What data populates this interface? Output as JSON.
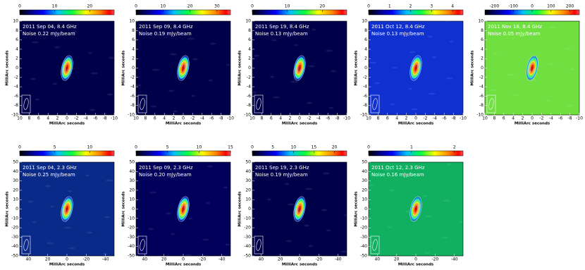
{
  "chart_data": [
    {
      "type": "image",
      "label": "2011 Sep 04, 8.4 GHz",
      "noise": "Noise 0.22 mJy/beam",
      "xlabel": "MilliArc seconds",
      "ylabel": "MilliArc seconds",
      "xlim": [
        10,
        -10
      ],
      "ylim": [
        -10,
        10
      ],
      "xticks": [
        10,
        8,
        6,
        4,
        2,
        0,
        -2,
        -4,
        -6,
        -8,
        -10
      ],
      "yticks": [
        -10,
        -8,
        -6,
        -4,
        -2,
        0,
        2,
        4,
        6,
        8,
        10
      ],
      "clim": [
        0,
        27
      ],
      "cticks": [
        0,
        10,
        20
      ],
      "background": "#00004a"
    },
    {
      "type": "image",
      "label": "2011 Sep 09, 8.4 GHz",
      "noise": "Noise 0.19 mJy/beam",
      "xlabel": "MilliArc seconds",
      "ylabel": "MilliArc seconds",
      "xlim": [
        10,
        -10
      ],
      "ylim": [
        -10,
        10
      ],
      "xticks": [
        10,
        8,
        6,
        4,
        2,
        0,
        -2,
        -4,
        -6,
        -8,
        -10
      ],
      "yticks": [
        -10,
        -8,
        -6,
        -4,
        -2,
        0,
        2,
        4,
        6,
        8,
        10
      ],
      "clim": [
        0,
        35
      ],
      "cticks": [
        0,
        10,
        20,
        30
      ],
      "background": "#00004a"
    },
    {
      "type": "image",
      "label": "2011 Sep 19, 8.4 GHz",
      "noise": "Noise 0.13 mJy/beam",
      "xlabel": "MilliArc seconds",
      "ylabel": "MilliArc seconds",
      "xlim": [
        10,
        -10
      ],
      "ylim": [
        -10,
        10
      ],
      "xticks": [
        10,
        8,
        6,
        4,
        2,
        0,
        -2,
        -4,
        -6,
        -8,
        -10
      ],
      "yticks": [
        -10,
        -8,
        -6,
        -4,
        -2,
        0,
        2,
        4,
        6,
        8,
        10
      ],
      "clim": [
        0,
        27
      ],
      "cticks": [
        0,
        10,
        20
      ],
      "background": "#00004a"
    },
    {
      "type": "image",
      "label": "2011 Oct 12, 8.4 GHz",
      "noise": "Noise 0.13 mJy/beam",
      "xlabel": "MilliArc seconds",
      "ylabel": "MilliArc seconds",
      "xlim": [
        10,
        -10
      ],
      "ylim": [
        -10,
        10
      ],
      "xticks": [
        10,
        8,
        6,
        4,
        2,
        0,
        -2,
        -4,
        -6,
        -8,
        -10
      ],
      "yticks": [
        -10,
        -8,
        -6,
        -4,
        -2,
        0,
        2,
        4,
        6,
        8,
        10
      ],
      "clim": [
        0,
        4.5
      ],
      "cticks": [
        0,
        1,
        2,
        3,
        4
      ],
      "background": "#1030d0"
    },
    {
      "type": "image",
      "label": "2011 Nov 18, 8.4 GHz",
      "noise": "Noise 0.05 mJy/beam",
      "xlabel": "MilliArc seconds",
      "ylabel": "MilliArc seconds",
      "xlim": [
        10,
        -10
      ],
      "ylim": [
        -10,
        10
      ],
      "xticks": [
        10,
        8,
        6,
        4,
        2,
        0,
        -2,
        -4,
        -6,
        -8,
        -10
      ],
      "yticks": [
        -10,
        -8,
        -6,
        -4,
        -2,
        0,
        2,
        4,
        6,
        8,
        10
      ],
      "clim": [
        -250,
        250
      ],
      "cticks": [
        -200,
        -100,
        0,
        100,
        200
      ],
      "background": "#70e040"
    },
    {
      "type": "image",
      "label": "2011 Sep 04, 2.3 GHz",
      "noise": "Noise 0.25 mJy/beam",
      "xlabel": "MilliArc seconds",
      "ylabel": "MilliArc seconds",
      "xlim": [
        49,
        -49
      ],
      "ylim": [
        -50,
        50
      ],
      "xticks": [
        40,
        20,
        0,
        -20,
        -40
      ],
      "yticks": [
        -50,
        -40,
        -30,
        -20,
        -10,
        0,
        10,
        20,
        30,
        40,
        50
      ],
      "clim": [
        0,
        13.5
      ],
      "cticks": [
        0,
        5,
        10
      ],
      "background": "#0a2a8a"
    },
    {
      "type": "image",
      "label": "2011 Sep 09, 2.3 GHz",
      "noise": "Noise 0.20 mJy/beam",
      "xlabel": "MilliArc seconds",
      "ylabel": "MilliArc seconds",
      "xlim": [
        49,
        -49
      ],
      "ylim": [
        -50,
        50
      ],
      "xticks": [
        40,
        20,
        0,
        -20,
        -40
      ],
      "yticks": [
        -50,
        -40,
        -30,
        -20,
        -10,
        0,
        10,
        20,
        30,
        40,
        50
      ],
      "clim": [
        0,
        15
      ],
      "cticks": [
        0,
        5,
        10,
        15
      ],
      "background": "#00005a"
    },
    {
      "type": "image",
      "label": "2011 Sep 19, 2.3 GHz",
      "noise": "Noise 0.19 mJy/beam",
      "xlabel": "MilliArc seconds",
      "ylabel": "MilliArc seconds",
      "xlim": [
        49,
        -49
      ],
      "ylim": [
        -50,
        50
      ],
      "xticks": [
        40,
        20,
        0,
        -20,
        -40
      ],
      "yticks": [
        -50,
        -40,
        -30,
        -20,
        -10,
        0,
        10,
        20,
        30,
        40,
        50
      ],
      "clim": [
        0,
        23
      ],
      "cticks": [
        0,
        5,
        10,
        15,
        20
      ],
      "background": "#00004a"
    },
    {
      "type": "image",
      "label": "2011 Oct 12, 2.3 GHz",
      "noise": "Noise 0.16 mJy/beam",
      "xlabel": "MilliArc seconds",
      "ylabel": "MilliArc seconds",
      "xlim": [
        49,
        -49
      ],
      "ylim": [
        -50,
        50
      ],
      "xticks": [
        40,
        20,
        0,
        -20,
        -40
      ],
      "yticks": [
        -50,
        -40,
        -30,
        -20,
        -10,
        0,
        10,
        20,
        30,
        40,
        50
      ],
      "clim": [
        0,
        2.2
      ],
      "cticks": [
        0,
        1,
        2
      ],
      "background": "#10b060"
    }
  ]
}
